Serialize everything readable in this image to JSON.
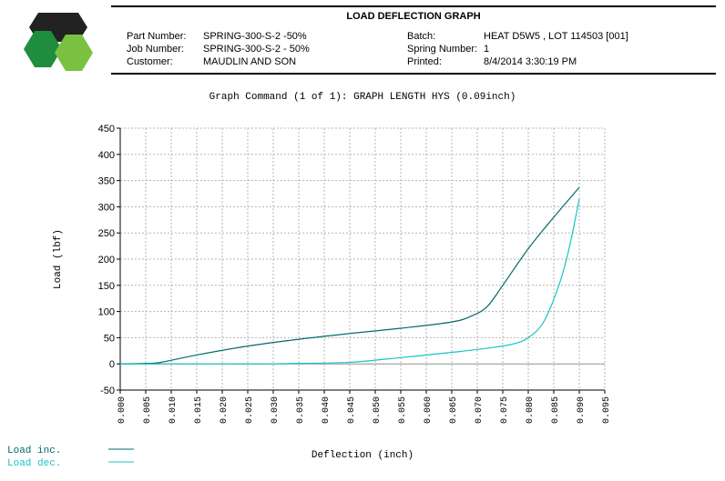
{
  "header": {
    "title": "LOAD DEFLECTION GRAPH",
    "part_number_label": "Part Number:",
    "part_number": "SPRING-300-S-2 -50%",
    "job_number_label": "Job Number:",
    "job_number": "SPRING-300-S-2 - 50%",
    "customer_label": "Customer:",
    "customer": "MAUDLIN AND SON",
    "batch_label": "Batch:",
    "batch": "HEAT D5W5 , LOT 114503 [001]",
    "spring_number_label": "Spring Number:",
    "spring_number": "1",
    "printed_label": "Printed:",
    "printed": "8/4/2014 3:30:19 PM"
  },
  "graph_command": "Graph Command (1 of 1): GRAPH LENGTH HYS (0.09inch)",
  "colors": {
    "inc": "#006b6b",
    "dec": "#19c4c4",
    "logo_dark": "#222222",
    "logo_green": "#1e8e3e",
    "logo_light": "#7ac142"
  },
  "chart_data": {
    "type": "line",
    "xlabel": "Deflection (inch)",
    "ylabel": "Load (lbf)",
    "xlim": [
      0.0,
      0.095
    ],
    "ylim": [
      -50,
      450
    ],
    "x_ticks": [
      "0.000",
      "0.005",
      "0.010",
      "0.015",
      "0.020",
      "0.025",
      "0.030",
      "0.035",
      "0.040",
      "0.045",
      "0.050",
      "0.055",
      "0.060",
      "0.065",
      "0.070",
      "0.075",
      "0.080",
      "0.085",
      "0.090",
      "0.095"
    ],
    "y_ticks": [
      "450",
      "400",
      "350",
      "300",
      "250",
      "200",
      "150",
      "100",
      "50",
      "0",
      "-50"
    ],
    "grid": true,
    "legend_position": "bottom-left",
    "series": [
      {
        "name": "Load inc.",
        "color": "#006b6b",
        "x": [
          0.0,
          0.005,
          0.008,
          0.015,
          0.025,
          0.035,
          0.045,
          0.055,
          0.065,
          0.069,
          0.072,
          0.075,
          0.08,
          0.085,
          0.09
        ],
        "y": [
          0,
          1,
          3,
          17,
          34,
          47,
          58,
          68,
          80,
          92,
          110,
          150,
          220,
          280,
          337
        ]
      },
      {
        "name": "Load dec.",
        "color": "#19c4c4",
        "x": [
          0.0,
          0.01,
          0.02,
          0.03,
          0.035,
          0.045,
          0.055,
          0.065,
          0.072,
          0.077,
          0.08,
          0.083,
          0.086,
          0.088,
          0.09
        ],
        "y": [
          0,
          0,
          0,
          0,
          1,
          3,
          12,
          22,
          30,
          38,
          50,
          80,
          150,
          220,
          315
        ]
      }
    ]
  }
}
